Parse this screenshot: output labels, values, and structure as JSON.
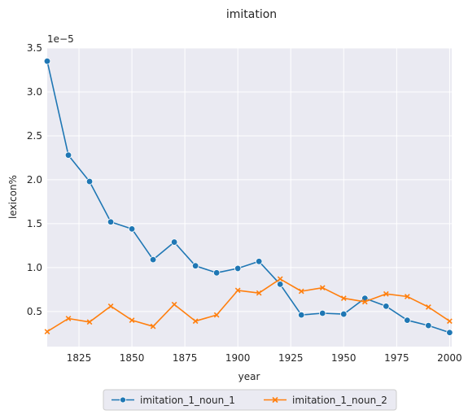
{
  "chart_data": {
    "type": "line",
    "title": "imitation",
    "xlabel": "year",
    "ylabel": "lexicon%",
    "y_scale_label": "1e−5",
    "xlim": [
      1810,
      2001
    ],
    "ylim": [
      0.1,
      3.5
    ],
    "x_ticks": [
      1825,
      1850,
      1875,
      1900,
      1925,
      1950,
      1975,
      2000
    ],
    "y_ticks": [
      0.5,
      1.0,
      1.5,
      2.0,
      2.5,
      3.0,
      3.5
    ],
    "x_tick_labels": [
      "1825",
      "1850",
      "1875",
      "1900",
      "1925",
      "1950",
      "1975",
      "2000"
    ],
    "y_tick_labels": [
      "0.5",
      "1.0",
      "1.5",
      "2.0",
      "2.5",
      "3.0",
      "3.5"
    ],
    "grid": true,
    "legend_position": "bottom-center",
    "x": [
      1810,
      1820,
      1830,
      1840,
      1850,
      1860,
      1870,
      1880,
      1890,
      1900,
      1910,
      1920,
      1930,
      1940,
      1950,
      1960,
      1970,
      1980,
      1990,
      2000
    ],
    "series": [
      {
        "name": "imitation_1_noun_1",
        "color": "#1f77b4",
        "marker": "circle",
        "values": [
          3.35,
          2.28,
          1.98,
          1.52,
          1.44,
          1.09,
          1.29,
          1.02,
          0.94,
          0.99,
          1.07,
          0.81,
          0.46,
          0.48,
          0.47,
          0.65,
          0.56,
          0.4,
          0.34,
          0.26
        ]
      },
      {
        "name": "imitation_1_noun_2",
        "color": "#ff7f0e",
        "marker": "x",
        "values": [
          0.27,
          0.42,
          0.38,
          0.56,
          0.4,
          0.33,
          0.58,
          0.39,
          0.46,
          0.74,
          0.71,
          0.87,
          0.73,
          0.77,
          0.65,
          0.61,
          0.7,
          0.67,
          0.55,
          0.39
        ]
      }
    ]
  }
}
